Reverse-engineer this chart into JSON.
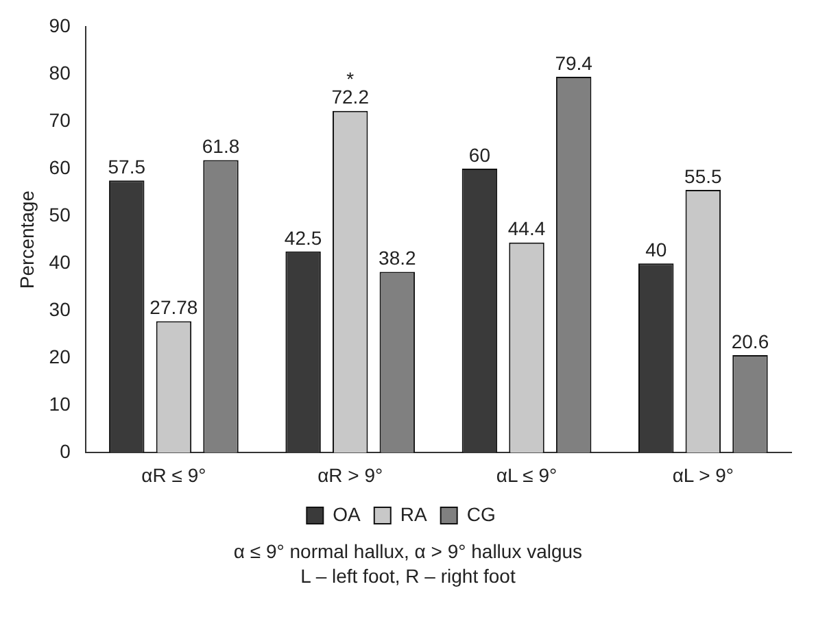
{
  "chart_data": {
    "type": "bar",
    "ylabel": "Percentage",
    "categories": [
      "αR ≤ 9°",
      "αR > 9°",
      "αL ≤ 9°",
      "αL > 9°"
    ],
    "series": [
      {
        "name": "OA",
        "color": "#3a3a3a",
        "values": [
          57.5,
          42.5,
          60,
          40
        ]
      },
      {
        "name": "RA",
        "color": "#c8c8c8",
        "values": [
          27.78,
          72.2,
          44.4,
          55.5
        ]
      },
      {
        "name": "CG",
        "color": "#808080",
        "values": [
          61.8,
          38.2,
          79.4,
          20.6
        ]
      }
    ],
    "ylim": [
      0,
      90
    ],
    "yticks": [
      0,
      10,
      20,
      30,
      40,
      50,
      60,
      70,
      80,
      90
    ],
    "grid": false,
    "legend": "bottom",
    "data_labels": true,
    "annotations": [
      {
        "text": "*",
        "x": "αR > 9°",
        "y": 72.2
      },
      "α ≤ 9° normal hallux, α > 9° hallux valgus",
      "L – left foot, R – right foot"
    ]
  }
}
